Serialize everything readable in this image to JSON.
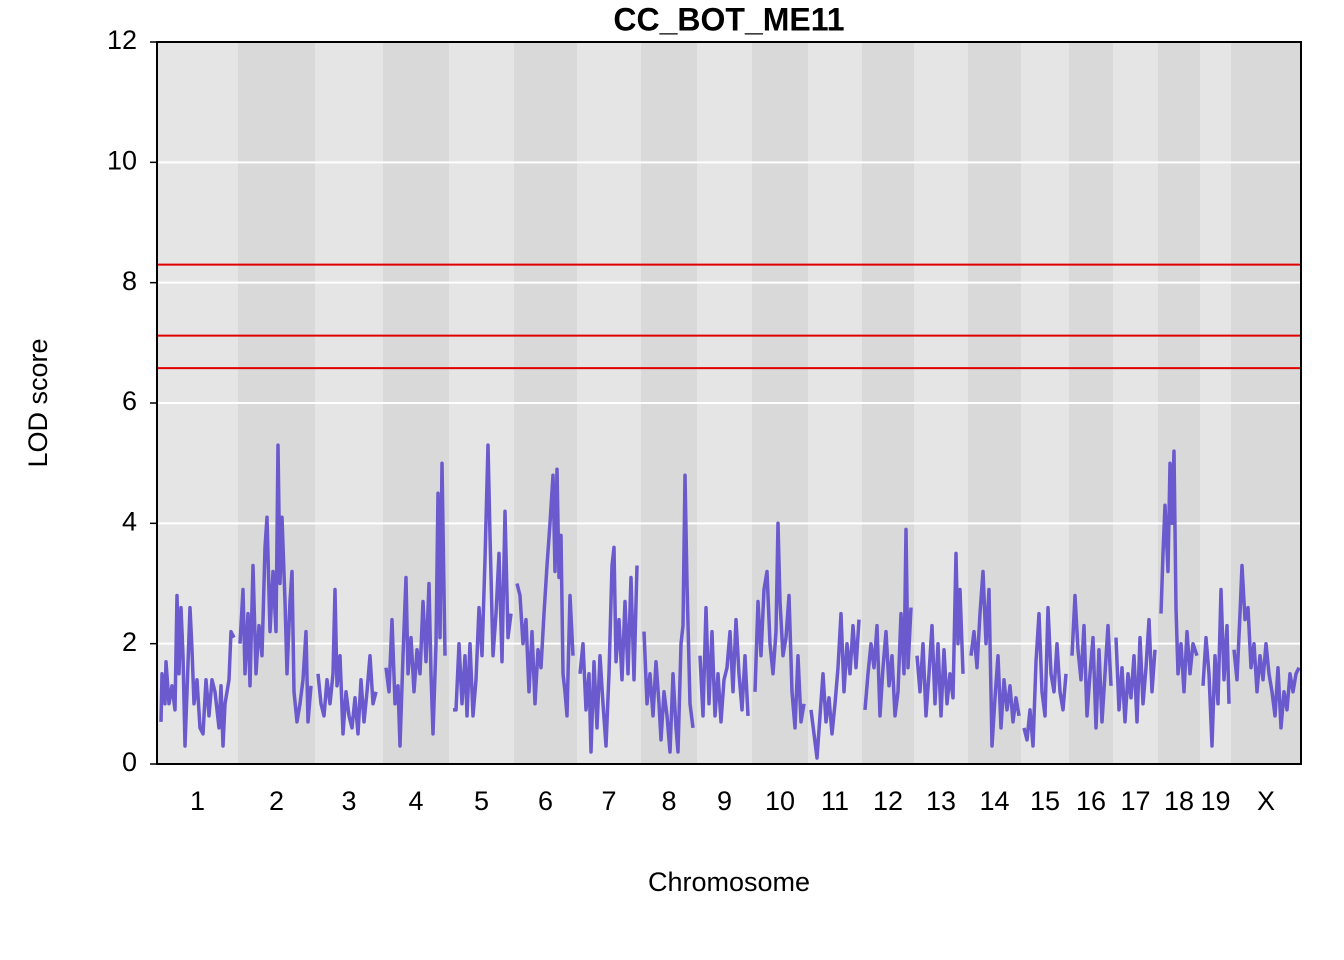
{
  "chart_data": {
    "type": "line",
    "title": "CC_BOT_ME11",
    "x_label": "Chromosome",
    "y_label": "LOD score",
    "xlim": [
      0,
      1144
    ],
    "ylim": [
      0,
      12
    ],
    "yticks": [
      0,
      2,
      4,
      6,
      8,
      10,
      12
    ],
    "grid": true,
    "line_color": "#6a5acd",
    "band_colors": [
      "#e5e5e5",
      "#d9d9d9"
    ],
    "thresholds": [
      8.3,
      7.12,
      6.58
    ],
    "threshold_color": "#e00000",
    "chromosomes": [
      {
        "name": "1",
        "start": 0,
        "end": 81,
        "x": [
          4,
          5,
          8,
          9,
          12,
          15,
          18,
          20,
          22,
          24,
          26,
          28,
          30,
          33,
          35,
          37,
          40,
          43,
          46,
          49,
          52,
          55,
          58,
          62,
          64,
          66,
          68,
          72,
          74,
          77
        ],
        "values": [
          0.7,
          1.5,
          1.0,
          1.7,
          1.0,
          1.3,
          0.9,
          2.8,
          1.5,
          2.6,
          1.8,
          0.3,
          1.2,
          2.6,
          1.9,
          1.0,
          1.4,
          0.6,
          0.5,
          1.4,
          0.8,
          1.4,
          1.2,
          0.6,
          1.3,
          0.3,
          1.0,
          1.4,
          2.2,
          2.1
        ]
      },
      {
        "name": "2",
        "start": 81,
        "end": 158,
        "x": [
          83,
          86,
          88,
          91,
          93,
          96,
          99,
          102,
          105,
          108,
          110,
          113,
          116,
          119,
          121,
          123,
          125,
          128,
          130,
          133,
          135,
          137,
          140,
          143,
          146,
          149,
          151,
          154
        ],
        "values": [
          2.0,
          2.9,
          1.5,
          2.5,
          1.3,
          3.3,
          1.5,
          2.3,
          1.8,
          3.6,
          4.1,
          2.2,
          3.2,
          2.2,
          5.3,
          3.0,
          4.1,
          2.7,
          1.5,
          2.7,
          3.2,
          1.2,
          0.7,
          1.0,
          1.4,
          2.2,
          0.7,
          1.3
        ]
      },
      {
        "name": "3",
        "start": 158,
        "end": 226,
        "x": [
          161,
          164,
          167,
          170,
          173,
          176,
          178,
          180,
          183,
          186,
          189,
          192,
          195,
          198,
          201,
          204,
          207,
          210,
          213,
          216,
          219
        ],
        "values": [
          1.5,
          1.0,
          0.8,
          1.4,
          1.0,
          1.5,
          2.9,
          1.3,
          1.8,
          0.5,
          1.2,
          0.8,
          0.6,
          1.1,
          0.5,
          1.4,
          0.7,
          1.2,
          1.8,
          1.0,
          1.2
        ]
      },
      {
        "name": "4",
        "start": 226,
        "end": 292,
        "x": [
          229,
          232,
          235,
          238,
          241,
          243,
          246,
          249,
          251,
          254,
          257,
          260,
          263,
          266,
          269,
          272,
          274,
          276,
          279,
          281,
          283,
          285,
          288
        ],
        "values": [
          1.6,
          1.2,
          2.4,
          1.0,
          1.3,
          0.3,
          1.8,
          3.1,
          1.5,
          2.1,
          1.2,
          1.9,
          1.5,
          2.7,
          1.7,
          3.0,
          1.5,
          0.5,
          2.0,
          4.5,
          2.1,
          5.0,
          1.8
        ]
      },
      {
        "name": "5",
        "start": 292,
        "end": 357,
        "x": [
          296,
          299,
          302,
          305,
          308,
          310,
          313,
          316,
          319,
          322,
          325,
          328,
          331,
          333,
          336,
          339,
          342,
          345,
          348,
          351,
          354
        ],
        "values": [
          0.9,
          0.9,
          2.0,
          1.0,
          1.8,
          0.8,
          2.0,
          0.8,
          1.4,
          2.6,
          1.8,
          3.4,
          5.3,
          3.8,
          1.8,
          2.5,
          3.5,
          1.7,
          4.2,
          2.1,
          2.5
        ]
      },
      {
        "name": "6",
        "start": 357,
        "end": 420,
        "x": [
          360,
          363,
          366,
          369,
          372,
          375,
          378,
          381,
          384,
          387,
          390,
          393,
          396,
          398,
          400,
          402,
          404,
          406,
          408,
          410,
          413,
          416
        ],
        "values": [
          3.0,
          2.8,
          2.0,
          2.4,
          1.2,
          2.2,
          1.0,
          1.9,
          1.6,
          2.5,
          3.3,
          4.0,
          4.8,
          3.2,
          4.9,
          3.1,
          3.8,
          1.5,
          1.2,
          0.8,
          2.8,
          1.8
        ]
      },
      {
        "name": "7",
        "start": 420,
        "end": 484,
        "x": [
          423,
          426,
          429,
          432,
          434,
          437,
          440,
          443,
          446,
          449,
          452,
          455,
          457,
          459,
          462,
          465,
          468,
          471,
          474,
          477,
          480
        ],
        "values": [
          1.5,
          2.0,
          0.9,
          1.5,
          0.2,
          1.7,
          0.6,
          1.8,
          1.0,
          0.3,
          1.5,
          3.3,
          3.6,
          1.7,
          2.4,
          1.4,
          2.7,
          1.5,
          3.1,
          1.4,
          3.3
        ]
      },
      {
        "name": "8",
        "start": 484,
        "end": 540,
        "x": [
          487,
          490,
          493,
          496,
          499,
          502,
          504,
          507,
          510,
          513,
          516,
          519,
          521,
          524,
          526,
          528,
          530,
          533,
          536
        ],
        "values": [
          2.2,
          1.0,
          1.5,
          0.8,
          1.7,
          1.0,
          0.4,
          1.2,
          0.8,
          0.2,
          1.5,
          0.6,
          0.2,
          2.0,
          2.3,
          4.8,
          3.0,
          1.0,
          0.6
        ]
      },
      {
        "name": "9",
        "start": 540,
        "end": 595,
        "x": [
          543,
          546,
          549,
          552,
          555,
          558,
          561,
          564,
          567,
          570,
          573,
          576,
          579,
          582,
          585,
          588,
          591
        ],
        "values": [
          1.8,
          0.8,
          2.6,
          1.0,
          2.2,
          0.8,
          1.5,
          0.7,
          1.4,
          1.6,
          2.2,
          1.2,
          2.4,
          1.5,
          0.9,
          1.8,
          0.8
        ]
      },
      {
        "name": "10",
        "start": 595,
        "end": 651,
        "x": [
          598,
          601,
          604,
          607,
          610,
          613,
          616,
          619,
          621,
          623,
          626,
          629,
          632,
          635,
          638,
          641,
          644,
          647
        ],
        "values": [
          1.2,
          2.7,
          1.8,
          2.9,
          3.2,
          2.0,
          1.5,
          2.2,
          4.0,
          2.7,
          1.8,
          2.1,
          2.8,
          1.2,
          0.6,
          1.8,
          0.7,
          1.0
        ]
      },
      {
        "name": "11",
        "start": 651,
        "end": 705,
        "x": [
          654,
          657,
          660,
          663,
          666,
          669,
          672,
          675,
          678,
          681,
          684,
          687,
          690,
          693,
          696,
          699,
          702
        ],
        "values": [
          0.9,
          0.5,
          0.1,
          0.8,
          1.5,
          0.7,
          1.1,
          0.5,
          1.0,
          1.6,
          2.5,
          1.2,
          2.0,
          1.5,
          2.3,
          1.6,
          2.4
        ]
      },
      {
        "name": "12",
        "start": 705,
        "end": 757,
        "x": [
          708,
          711,
          714,
          717,
          720,
          723,
          726,
          729,
          732,
          735,
          738,
          741,
          744,
          747,
          749,
          751,
          754
        ],
        "values": [
          0.9,
          1.5,
          2.0,
          1.6,
          2.3,
          0.8,
          1.6,
          2.2,
          1.3,
          1.8,
          0.8,
          1.2,
          2.5,
          1.5,
          3.9,
          1.6,
          2.6
        ]
      },
      {
        "name": "13",
        "start": 757,
        "end": 811,
        "x": [
          760,
          763,
          766,
          769,
          772,
          775,
          778,
          781,
          784,
          787,
          790,
          793,
          796,
          799,
          801,
          803,
          806
        ],
        "values": [
          1.8,
          1.2,
          2.0,
          0.8,
          1.5,
          2.3,
          1.0,
          2.0,
          0.8,
          1.9,
          1.0,
          1.5,
          1.1,
          3.5,
          2.0,
          2.9,
          1.5
        ]
      },
      {
        "name": "14",
        "start": 811,
        "end": 864,
        "x": [
          814,
          817,
          820,
          823,
          826,
          829,
          832,
          835,
          838,
          841,
          844,
          847,
          850,
          853,
          856,
          859,
          862
        ],
        "values": [
          1.8,
          2.2,
          1.6,
          2.5,
          3.2,
          2.0,
          2.9,
          0.3,
          1.1,
          1.8,
          0.6,
          1.4,
          0.9,
          1.3,
          0.7,
          1.1,
          0.8
        ]
      },
      {
        "name": "15",
        "start": 864,
        "end": 912,
        "x": [
          867,
          870,
          873,
          876,
          879,
          882,
          885,
          888,
          891,
          894,
          897,
          900,
          903,
          906,
          909
        ],
        "values": [
          0.6,
          0.4,
          0.9,
          0.3,
          1.7,
          2.5,
          1.2,
          0.8,
          2.6,
          1.5,
          1.2,
          2.0,
          1.2,
          0.9,
          1.5
        ]
      },
      {
        "name": "16",
        "start": 912,
        "end": 956,
        "x": [
          915,
          918,
          921,
          924,
          927,
          930,
          933,
          936,
          939,
          942,
          945,
          948,
          951,
          954
        ],
        "values": [
          1.8,
          2.8,
          1.9,
          1.4,
          2.3,
          0.8,
          1.5,
          2.1,
          0.6,
          1.9,
          0.7,
          1.5,
          2.3,
          1.3
        ]
      },
      {
        "name": "17",
        "start": 956,
        "end": 1001,
        "x": [
          959,
          962,
          965,
          968,
          971,
          974,
          977,
          980,
          983,
          986,
          989,
          992,
          995,
          998
        ],
        "values": [
          2.1,
          0.9,
          1.6,
          0.7,
          1.5,
          1.1,
          1.8,
          0.7,
          2.1,
          1.0,
          1.6,
          2.4,
          1.2,
          1.9
        ]
      },
      {
        "name": "18",
        "start": 1001,
        "end": 1043,
        "x": [
          1004,
          1006,
          1008,
          1011,
          1013,
          1015,
          1017,
          1019,
          1021,
          1024,
          1027,
          1030,
          1033,
          1036,
          1040
        ],
        "values": [
          2.5,
          3.5,
          4.3,
          3.2,
          5.0,
          4.0,
          5.2,
          2.6,
          1.5,
          2.0,
          1.2,
          2.2,
          1.5,
          2.0,
          1.8
        ]
      },
      {
        "name": "19",
        "start": 1043,
        "end": 1074,
        "x": [
          1046,
          1049,
          1052,
          1055,
          1058,
          1061,
          1064,
          1067,
          1070,
          1072
        ],
        "values": [
          1.3,
          2.1,
          1.5,
          0.3,
          1.8,
          1.0,
          2.9,
          1.4,
          2.3,
          1.0
        ]
      },
      {
        "name": "X",
        "start": 1074,
        "end": 1144,
        "x": [
          1077,
          1080,
          1083,
          1085,
          1088,
          1091,
          1094,
          1097,
          1100,
          1103,
          1106,
          1109,
          1112,
          1115,
          1118,
          1121,
          1124,
          1127,
          1130,
          1133,
          1136,
          1139,
          1142
        ],
        "values": [
          1.9,
          1.4,
          2.5,
          3.3,
          2.4,
          2.6,
          1.6,
          2.0,
          1.2,
          1.8,
          1.4,
          2.0,
          1.5,
          1.2,
          0.8,
          1.6,
          0.6,
          1.2,
          0.9,
          1.5,
          1.2,
          1.5,
          1.6
        ]
      }
    ]
  }
}
